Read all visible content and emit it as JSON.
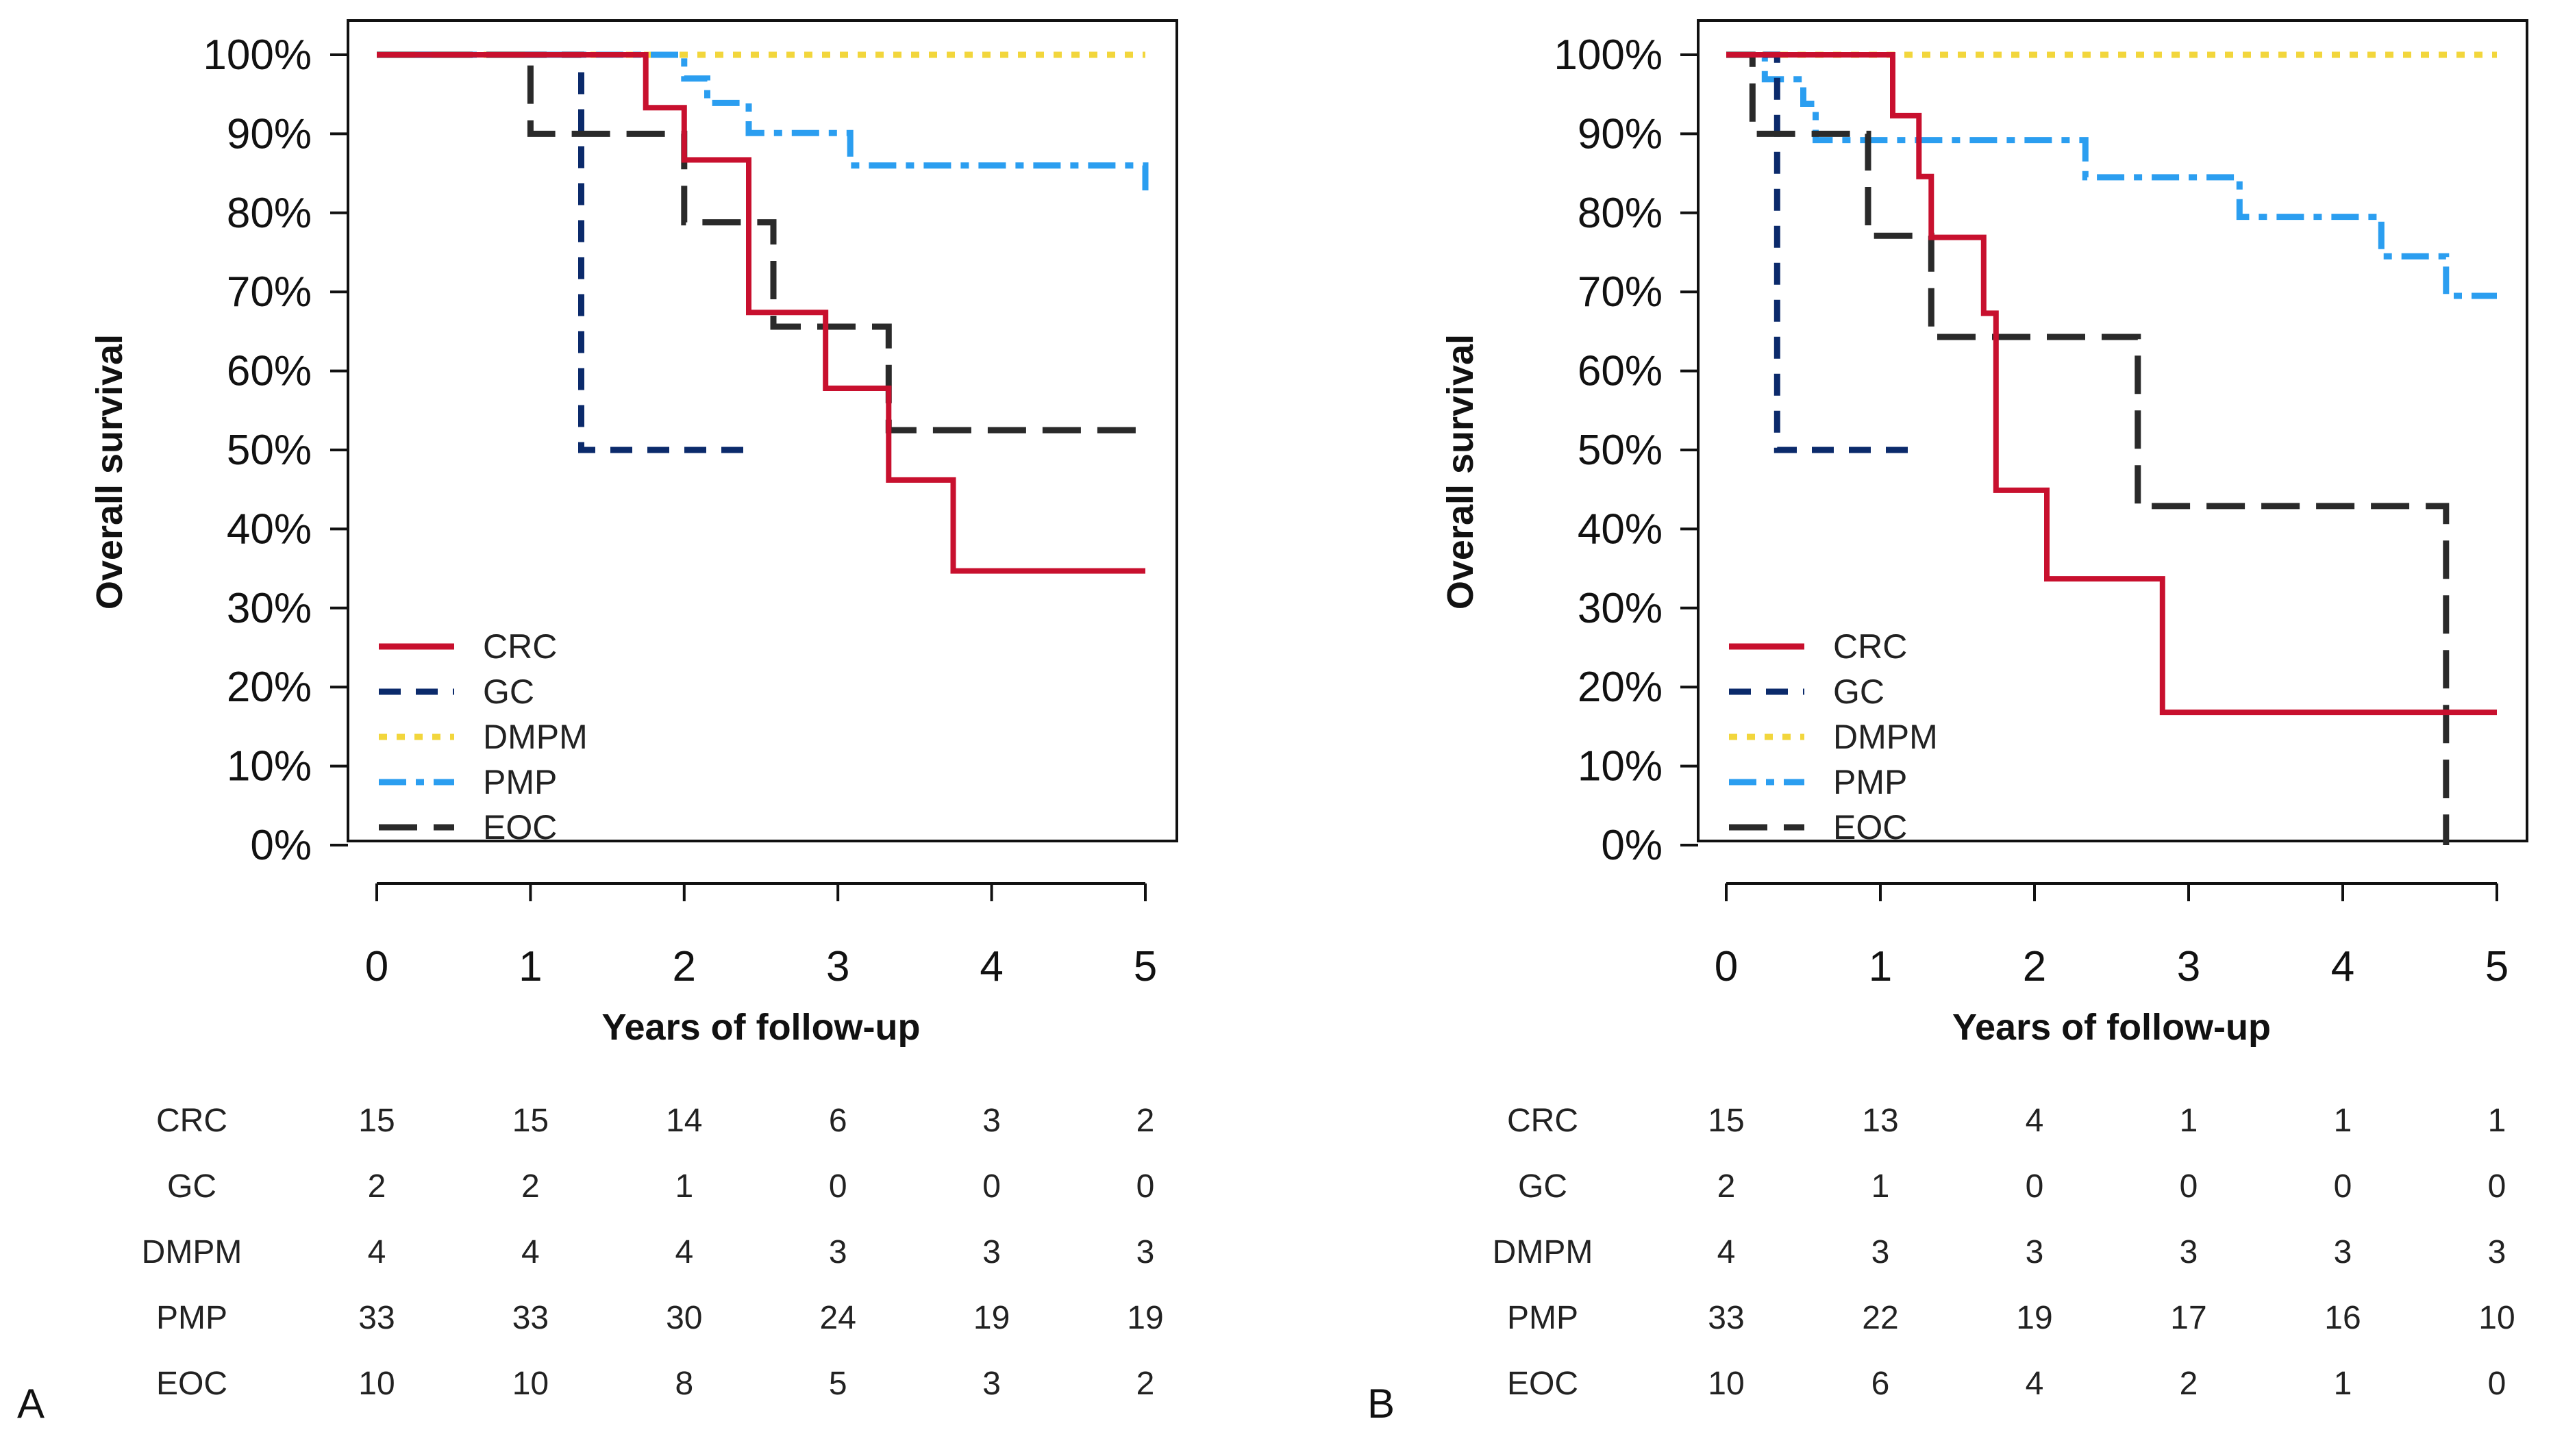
{
  "colors": {
    "CRC": "#c8102e",
    "GC": "#0b2a6b",
    "DMPM": "#f2d63c",
    "PMP": "#2b9ef0",
    "EOC": "#2a2a2a"
  },
  "chart_data": [
    {
      "type": "line",
      "panel_label": "A",
      "xlabel": "Years of follow-up",
      "ylabel": "Overall survival",
      "xlim": [
        0,
        5
      ],
      "ylim": [
        0,
        100
      ],
      "x_ticks": [
        "0",
        "1",
        "2",
        "3",
        "4",
        "5"
      ],
      "y_ticks": [
        "0%",
        "10%",
        "20%",
        "30%",
        "40%",
        "50%",
        "60%",
        "70%",
        "80%",
        "90%",
        "100%"
      ],
      "legend": [
        "CRC",
        "GC",
        "DMPM",
        "PMP",
        "EOC"
      ],
      "series": [
        {
          "name": "CRC",
          "steps": [
            [
              0,
              100
            ],
            [
              1.75,
              100
            ],
            [
              1.75,
              93.3
            ],
            [
              2.0,
              93.3
            ],
            [
              2.0,
              86.7
            ],
            [
              2.42,
              86.7
            ],
            [
              2.42,
              67.4
            ],
            [
              2.92,
              67.4
            ],
            [
              2.92,
              57.8
            ],
            [
              3.33,
              57.8
            ],
            [
              3.33,
              46.2
            ],
            [
              3.75,
              46.2
            ],
            [
              3.75,
              34.7
            ],
            [
              5.0,
              34.7
            ]
          ]
        },
        {
          "name": "GC",
          "steps": [
            [
              0,
              100
            ],
            [
              1.33,
              100
            ],
            [
              1.33,
              50
            ],
            [
              2.4,
              50
            ]
          ]
        },
        {
          "name": "DMPM",
          "steps": [
            [
              0,
              100
            ],
            [
              5.0,
              100
            ]
          ]
        },
        {
          "name": "PMP",
          "steps": [
            [
              0,
              100
            ],
            [
              2.0,
              100
            ],
            [
              2.0,
              97
            ],
            [
              2.15,
              97
            ],
            [
              2.15,
              93.9
            ],
            [
              2.42,
              93.9
            ],
            [
              2.42,
              90.1
            ],
            [
              3.08,
              90.1
            ],
            [
              3.08,
              86
            ],
            [
              5.0,
              86
            ],
            [
              5.0,
              82
            ]
          ]
        },
        {
          "name": "EOC",
          "steps": [
            [
              0,
              100
            ],
            [
              1.0,
              100
            ],
            [
              1.0,
              90
            ],
            [
              2.0,
              90
            ],
            [
              2.0,
              78.8
            ],
            [
              2.58,
              78.8
            ],
            [
              2.58,
              65.6
            ],
            [
              3.33,
              65.6
            ],
            [
              3.33,
              52.5
            ],
            [
              5.0,
              52.5
            ]
          ]
        }
      ],
      "risk_table": {
        "groups": [
          "CRC",
          "GC",
          "DMPM",
          "PMP",
          "EOC"
        ],
        "counts": [
          [
            "15",
            "15",
            "14",
            "6",
            "3",
            "2"
          ],
          [
            "2",
            "2",
            "1",
            "0",
            "0",
            "0"
          ],
          [
            "4",
            "4",
            "4",
            "3",
            "3",
            "3"
          ],
          [
            "33",
            "33",
            "30",
            "24",
            "19",
            "19"
          ],
          [
            "10",
            "10",
            "8",
            "5",
            "3",
            "2"
          ]
        ]
      }
    },
    {
      "type": "line",
      "panel_label": "B",
      "xlabel": "Years of follow-up",
      "ylabel": "Overall survival",
      "xlim": [
        0,
        5
      ],
      "ylim": [
        0,
        100
      ],
      "x_ticks": [
        "0",
        "1",
        "2",
        "3",
        "4",
        "5"
      ],
      "y_ticks": [
        "0%",
        "10%",
        "20%",
        "30%",
        "40%",
        "50%",
        "60%",
        "70%",
        "80%",
        "90%",
        "100%"
      ],
      "legend": [
        "CRC",
        "GC",
        "DMPM",
        "PMP",
        "EOC"
      ],
      "series": [
        {
          "name": "CRC",
          "steps": [
            [
              0,
              100
            ],
            [
              1.08,
              100
            ],
            [
              1.08,
              92.3
            ],
            [
              1.25,
              92.3
            ],
            [
              1.25,
              84.6
            ],
            [
              1.33,
              84.6
            ],
            [
              1.33,
              76.9
            ],
            [
              1.67,
              76.9
            ],
            [
              1.67,
              67.3
            ],
            [
              1.75,
              67.3
            ],
            [
              1.75,
              44.9
            ],
            [
              2.08,
              44.9
            ],
            [
              2.08,
              33.7
            ],
            [
              2.83,
              33.7
            ],
            [
              2.83,
              16.8
            ],
            [
              5.0,
              16.8
            ]
          ]
        },
        {
          "name": "GC",
          "steps": [
            [
              0,
              100
            ],
            [
              0.33,
              100
            ],
            [
              0.33,
              50
            ],
            [
              1.2,
              50
            ]
          ]
        },
        {
          "name": "DMPM",
          "steps": [
            [
              0,
              100
            ],
            [
              5.0,
              100
            ]
          ]
        },
        {
          "name": "PMP",
          "steps": [
            [
              0,
              100
            ],
            [
              0.25,
              100
            ],
            [
              0.25,
              96.9
            ],
            [
              0.5,
              96.9
            ],
            [
              0.5,
              93.8
            ],
            [
              0.58,
              93.8
            ],
            [
              0.58,
              89.2
            ],
            [
              2.33,
              89.2
            ],
            [
              2.33,
              84.5
            ],
            [
              3.33,
              84.5
            ],
            [
              3.33,
              79.5
            ],
            [
              4.25,
              79.5
            ],
            [
              4.25,
              74.5
            ],
            [
              4.67,
              74.5
            ],
            [
              4.67,
              69.5
            ],
            [
              5.0,
              69.5
            ]
          ]
        },
        {
          "name": "EOC",
          "steps": [
            [
              0,
              100
            ],
            [
              0.17,
              100
            ],
            [
              0.17,
              90
            ],
            [
              0.92,
              90
            ],
            [
              0.92,
              77.1
            ],
            [
              1.33,
              77.1
            ],
            [
              1.33,
              64.3
            ],
            [
              2.67,
              64.3
            ],
            [
              2.67,
              42.9
            ],
            [
              4.67,
              42.9
            ],
            [
              4.67,
              0
            ]
          ]
        }
      ],
      "risk_table": {
        "groups": [
          "CRC",
          "GC",
          "DMPM",
          "PMP",
          "EOC"
        ],
        "counts": [
          [
            "15",
            "13",
            "4",
            "1",
            "1",
            "1"
          ],
          [
            "2",
            "1",
            "0",
            "0",
            "0",
            "0"
          ],
          [
            "4",
            "3",
            "3",
            "3",
            "3",
            "3"
          ],
          [
            "33",
            "22",
            "19",
            "17",
            "16",
            "10"
          ],
          [
            "10",
            "6",
            "4",
            "2",
            "1",
            "0"
          ]
        ]
      }
    }
  ]
}
